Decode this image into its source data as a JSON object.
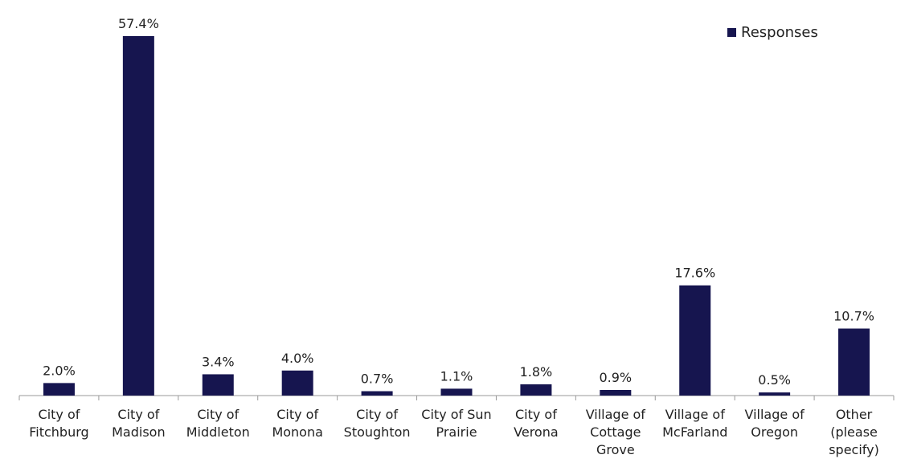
{
  "chart_data": {
    "type": "bar",
    "categories": [
      "City of Fitchburg",
      "City of Madison",
      "City of Middleton",
      "City of Monona",
      "City of Stoughton",
      "City of Sun Prairie",
      "City of Verona",
      "Village of Cottage Grove",
      "Village of McFarland",
      "Village of Oregon",
      "Other (please specify)"
    ],
    "category_lines": [
      [
        "City of",
        "Fitchburg"
      ],
      [
        "City of",
        "Madison"
      ],
      [
        "City of",
        "Middleton"
      ],
      [
        "City of",
        "Monona"
      ],
      [
        "City of",
        "Stoughton"
      ],
      [
        "City of Sun",
        "Prairie"
      ],
      [
        "City of",
        "Verona"
      ],
      [
        "Village of",
        "Cottage",
        "Grove"
      ],
      [
        "Village of",
        "McFarland"
      ],
      [
        "Village of",
        "Oregon"
      ],
      [
        "Other",
        "(please",
        "specify)"
      ]
    ],
    "series": [
      {
        "name": "Responses",
        "values": [
          2.0,
          57.4,
          3.4,
          4.0,
          0.7,
          1.1,
          1.8,
          0.9,
          17.6,
          0.5,
          10.7
        ],
        "labels": [
          "2.0%",
          "57.4%",
          "3.4%",
          "4.0%",
          "0.7%",
          "1.1%",
          "1.8%",
          "0.9%",
          "17.6%",
          "0.5%",
          "10.7%"
        ],
        "color": "#16154f"
      }
    ],
    "ylim": [
      0,
      60
    ],
    "grid": false,
    "legend": "top-right"
  }
}
